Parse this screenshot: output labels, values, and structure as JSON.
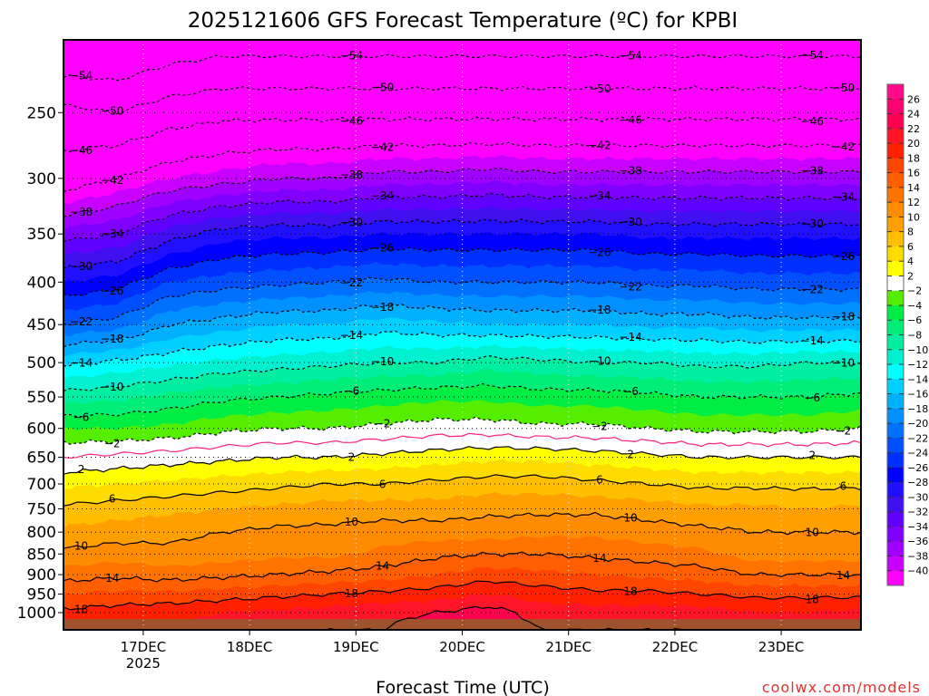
{
  "chart_data": {
    "type": "heatmap",
    "title": "2025121606 GFS Forecast Temperature (ºC) for KPBI",
    "xlabel": "Forecast Time (UTC)",
    "ylabel": "",
    "watermark": "coolwx.com/models",
    "x_range_hours": [
      0,
      180
    ],
    "x_ticks": [
      {
        "label": "17DEC",
        "sub": "2025",
        "hour": 18
      },
      {
        "label": "18DEC",
        "sub": "",
        "hour": 42
      },
      {
        "label": "19DEC",
        "sub": "",
        "hour": 66
      },
      {
        "label": "20DEC",
        "sub": "",
        "hour": 90
      },
      {
        "label": "21DEC",
        "sub": "",
        "hour": 114
      },
      {
        "label": "22DEC",
        "sub": "",
        "hour": 138
      },
      {
        "label": "23DEC",
        "sub": "",
        "hour": 162
      }
    ],
    "y_ticks": [
      250,
      300,
      350,
      400,
      450,
      500,
      550,
      600,
      650,
      700,
      750,
      800,
      850,
      900,
      950,
      1000
    ],
    "y_range_hpa": [
      204,
      1049
    ],
    "surface_pressure_hpa": 1018,
    "times_hours": [
      0,
      12,
      24,
      36,
      48,
      60,
      72,
      84,
      96,
      108,
      120,
      132,
      144,
      156,
      168,
      180
    ],
    "pressure_levels": [
      200,
      250,
      300,
      350,
      400,
      450,
      500,
      550,
      600,
      650,
      700,
      750,
      800,
      850,
      900,
      950,
      1000,
      1050
    ],
    "temperature": [
      [
        -60,
        -49,
        -44,
        -35,
        -28,
        -22,
        -14.5,
        -9,
        -4,
        0,
        3.5,
        6.5,
        8.5,
        10.5,
        13,
        16,
        18.5,
        19
      ],
      [
        -60,
        -50,
        -42,
        -34,
        -27,
        -21,
        -13.5,
        -8.5,
        -4,
        0.5,
        4,
        7,
        9,
        11,
        13.5,
        16.5,
        19,
        19.5
      ],
      [
        -58,
        -48,
        -40,
        -31,
        -24,
        -18,
        -12.5,
        -7.5,
        -3.5,
        1,
        4.5,
        7.5,
        9.5,
        10.5,
        13,
        16.5,
        19.5,
        20
      ],
      [
        -57,
        -47,
        -39,
        -29,
        -23,
        -17,
        -11.5,
        -6.5,
        -2.5,
        1.5,
        5,
        8,
        10,
        11,
        13.5,
        17,
        20,
        21
      ],
      [
        -57,
        -47,
        -38,
        -28.5,
        -22.5,
        -16,
        -11,
        -6,
        -2,
        2,
        5.5,
        8.5,
        10.5,
        11.5,
        14,
        17.5,
        20.5,
        21
      ],
      [
        -57,
        -47,
        -38,
        -28.5,
        -22,
        -16,
        -10.5,
        -5.5,
        -2,
        2,
        6,
        9,
        10.5,
        11.5,
        14.5,
        18,
        21,
        22
      ],
      [
        -57,
        -47,
        -37,
        -28,
        -21.5,
        -15,
        -10,
        -5,
        -1.5,
        2.5,
        6,
        9,
        11,
        12.5,
        15,
        18.5,
        21.5,
        22
      ],
      [
        -57,
        -47,
        -37,
        -28,
        -22,
        -15.5,
        -10,
        -4.5,
        -1,
        3,
        6.5,
        9,
        11,
        13.5,
        16,
        19,
        22,
        23
      ],
      [
        -57,
        -47,
        -36.5,
        -28,
        -22,
        -16,
        -9,
        -4.5,
        -1,
        3.5,
        7,
        9.5,
        11,
        14,
        17,
        20,
        23,
        24
      ],
      [
        -57,
        -47,
        -37,
        -28,
        -22,
        -16,
        -9.5,
        -5,
        -1.5,
        3.5,
        7,
        9.5,
        11.5,
        14,
        16.5,
        19,
        21,
        22
      ],
      [
        -57,
        -47,
        -37,
        -28,
        -22,
        -16,
        -10,
        -5,
        -1.5,
        3,
        6.5,
        9.5,
        11.5,
        13.5,
        16,
        18.5,
        21,
        22
      ],
      [
        -57,
        -47,
        -37,
        -28.5,
        -22.5,
        -16.5,
        -10,
        -5.5,
        -2,
        2.5,
        6,
        9,
        11,
        13,
        15.5,
        18.5,
        21,
        22
      ],
      [
        -57,
        -47,
        -37,
        -28.5,
        -22.5,
        -16.5,
        -10.5,
        -6,
        -2.5,
        2,
        5.5,
        8.5,
        10.5,
        12.5,
        15,
        18,
        21,
        22
      ],
      [
        -57,
        -47,
        -37,
        -28.5,
        -23,
        -17,
        -10.5,
        -6,
        -2.5,
        2,
        5.5,
        8.5,
        10,
        11,
        14,
        17.5,
        20,
        21
      ],
      [
        -57,
        -47,
        -37,
        -28.5,
        -23,
        -17,
        -10,
        -6,
        -2.5,
        2,
        5.5,
        8,
        10,
        11,
        14,
        17.5,
        20,
        21
      ],
      [
        -57,
        -47,
        -37,
        -28.5,
        -23,
        -17,
        -10,
        -5.5,
        -2,
        2,
        5.5,
        8.5,
        10,
        11,
        14,
        17.5,
        20.5,
        21
      ]
    ],
    "contour_levels": [
      -54,
      -50,
      -46,
      -42,
      -38,
      -34,
      -30,
      -26,
      -22,
      -18,
      -14,
      -10,
      -6,
      -2,
      2,
      6,
      10,
      14,
      18,
      22
    ],
    "freezing_level_contour": 0,
    "colorbar": {
      "labels": [
        "26",
        "24",
        "22",
        "20",
        "18",
        "16",
        "14",
        "12",
        "10",
        "8",
        "6",
        "4",
        "2",
        "-2",
        "-4",
        "-6",
        "-8",
        "-10",
        "-12",
        "-14",
        "-16",
        "-18",
        "-20",
        "-22",
        "-24",
        "-26",
        "-28",
        "-30",
        "-32",
        "-34",
        "-36",
        "-38",
        "-40"
      ],
      "thresholds": [
        26,
        24,
        22,
        20,
        18,
        16,
        14,
        12,
        10,
        8,
        6,
        4,
        2,
        -2,
        -4,
        -6,
        -8,
        -10,
        -12,
        -14,
        -16,
        -18,
        -20,
        -22,
        -24,
        -26,
        -28,
        -30,
        -32,
        -34,
        -36,
        -38,
        -40
      ],
      "colors": [
        "#ff0a8c",
        "#ff0070",
        "#ff0050",
        "#ff1428",
        "#ff2000",
        "#ff4600",
        "#ff5f00",
        "#ff7300",
        "#ff8c00",
        "#ffa000",
        "#ffbe00",
        "#ffdc00",
        "#ffff00",
        "#ffffff",
        "#55ee00",
        "#00ee44",
        "#00ee78",
        "#00eea0",
        "#00f0d0",
        "#00ffff",
        "#00d0ff",
        "#00b0ff",
        "#0090ff",
        "#0070ff",
        "#0050ff",
        "#0030ff",
        "#0000ff",
        "#2010ff",
        "#4010f0",
        "#6000ff",
        "#8000ff",
        "#a000ff",
        "#c800ff",
        "#ff00ff"
      ]
    },
    "colors": {
      "freezing_line": "#ff2080",
      "ground": "#a0522d",
      "watermark": "#e03030"
    }
  }
}
